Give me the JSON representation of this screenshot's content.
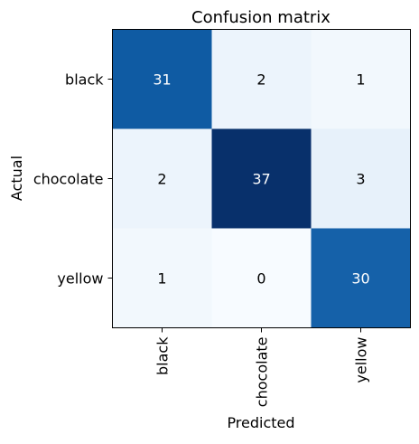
{
  "chart_data": {
    "type": "heatmap",
    "title": "Confusion matrix",
    "xlabel": "Predicted",
    "ylabel": "Actual",
    "x_categories": [
      "black",
      "chocolate",
      "yellow"
    ],
    "y_categories": [
      "black",
      "chocolate",
      "yellow"
    ],
    "values": [
      [
        31,
        2,
        1
      ],
      [
        2,
        37,
        3
      ],
      [
        1,
        0,
        30
      ]
    ],
    "colormap": "Blues",
    "value_range": [
      0,
      37
    ],
    "grid": false
  }
}
